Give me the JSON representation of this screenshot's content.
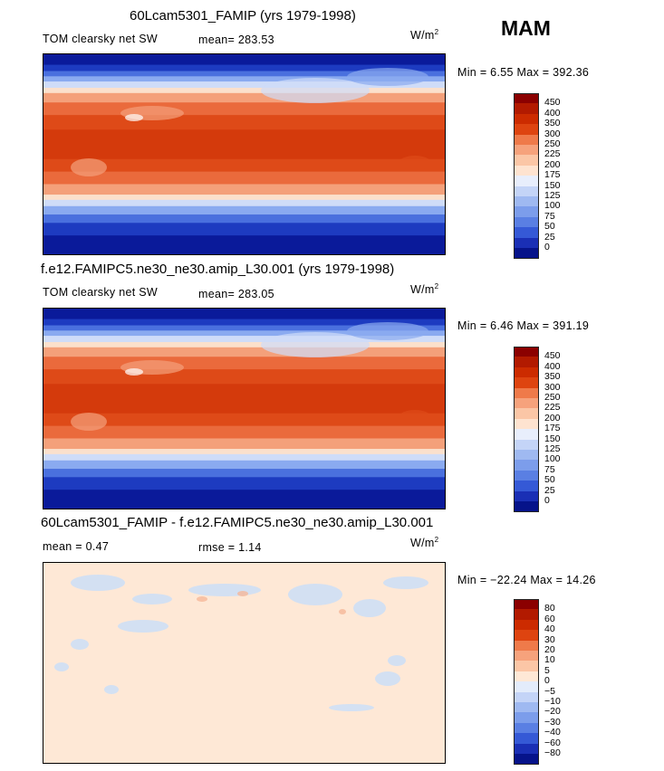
{
  "season": "MAM",
  "panels": [
    {
      "title": "60Lcam5301_FAMIP (yrs 1979-1998)",
      "left_label": "TOM clearsky net SW",
      "center_label": "mean= 283.53",
      "units": "W/m",
      "units_exp": "2",
      "minmax": "Min =    6.55  Max =  392.36",
      "colorbar": {
        "levels": [
          "450",
          "400",
          "350",
          "300",
          "250",
          "225",
          "200",
          "175",
          "150",
          "125",
          "100",
          "75",
          "50",
          "25",
          "0"
        ],
        "colors": [
          "#8b0000",
          "#b21a00",
          "#cc2b00",
          "#de4410",
          "#ef7a4a",
          "#f6a27c",
          "#fbc6a6",
          "#fee3d0",
          "#e8eefc",
          "#c4d4f7",
          "#9fb9f1",
          "#7c9deb",
          "#5a7fe3",
          "#3559d6",
          "#1a2fb5",
          "#06138a"
        ]
      }
    },
    {
      "title": "f.e12.FAMIPC5.ne30_ne30.amip_L30.001 (yrs 1979-1998)",
      "left_label": "TOM clearsky net SW",
      "center_label": "mean= 283.05",
      "units": "W/m",
      "units_exp": "2",
      "minmax": "Min =    6.46  Max =  391.19",
      "colorbar": {
        "levels": [
          "450",
          "400",
          "350",
          "300",
          "250",
          "225",
          "200",
          "175",
          "150",
          "125",
          "100",
          "75",
          "50",
          "25",
          "0"
        ],
        "colors": [
          "#8b0000",
          "#b21a00",
          "#cc2b00",
          "#de4410",
          "#ef7a4a",
          "#f6a27c",
          "#fbc6a6",
          "#fee3d0",
          "#e8eefc",
          "#c4d4f7",
          "#9fb9f1",
          "#7c9deb",
          "#5a7fe3",
          "#3559d6",
          "#1a2fb5",
          "#06138a"
        ]
      }
    },
    {
      "title": "60Lcam5301_FAMIP - f.e12.FAMIPC5.ne30_ne30.amip_L30.001",
      "left_label": "mean =    0.47",
      "center_label": "rmse =    1.14",
      "units": "W/m",
      "units_exp": "2",
      "minmax": "Min = −22.24  Max =  14.26",
      "colorbar": {
        "levels": [
          "80",
          "60",
          "40",
          "30",
          "20",
          "10",
          "5",
          "0",
          "−5",
          "−10",
          "−20",
          "−30",
          "−40",
          "−60",
          "−80"
        ],
        "colors": [
          "#8b0000",
          "#b21a00",
          "#cc2b00",
          "#de4410",
          "#ef7a4a",
          "#f6a27c",
          "#fbc6a6",
          "#fee8d6",
          "#e3ecfb",
          "#c4d4f7",
          "#9fb9f1",
          "#7c9deb",
          "#5a7fe3",
          "#3559d6",
          "#1a2fb5",
          "#06138a"
        ]
      }
    }
  ]
}
